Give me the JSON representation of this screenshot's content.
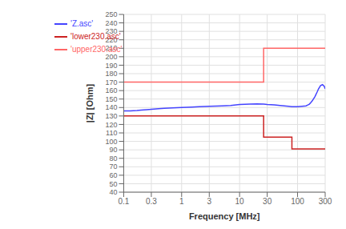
{
  "chart_data": {
    "type": "line",
    "xlabel": "Frequency [MHz]",
    "ylabel": "|Z| [Ohm]",
    "log": "x",
    "grid": true,
    "legend": "upper left",
    "xlim": [
      0.1,
      300
    ],
    "xticks": [
      0.1,
      0.3,
      1,
      3,
      10,
      30,
      100,
      300
    ],
    "ylim": [
      40,
      250
    ],
    "yticks": [
      40,
      50,
      60,
      70,
      80,
      90,
      100,
      110,
      120,
      130,
      140,
      150,
      160,
      170,
      180,
      190,
      200,
      210,
      220,
      230,
      240,
      250
    ],
    "series": [
      {
        "name": "'Z.asc'",
        "color": "#4444ff",
        "x": [
          0.1,
          0.13,
          0.17,
          0.2,
          0.25,
          0.3,
          0.4,
          0.5,
          0.7,
          1.0,
          1.5,
          2.0,
          3.0,
          5.0,
          7.0,
          10.0,
          15.0,
          20.0,
          26.0,
          30.0,
          40.0,
          50.0,
          70.0,
          80.0,
          100.0,
          120.0,
          140.0,
          150.0,
          160.0,
          170.0,
          180.0,
          200.0,
          220.0,
          230.0,
          250.0,
          270.0,
          290.0,
          300.0
        ],
        "values": [
          136,
          136,
          136.5,
          137,
          137.5,
          138,
          138.5,
          139,
          139.5,
          140,
          140.5,
          141,
          141.5,
          142,
          142.5,
          143.5,
          144,
          144.2,
          144,
          143.5,
          143,
          142.5,
          141.5,
          141,
          141,
          141.5,
          142,
          143,
          144,
          146,
          148,
          153,
          159,
          162,
          166,
          167,
          165,
          162
        ]
      },
      {
        "name": "'upper230.asc'",
        "color": "#ff6666",
        "x": [
          0.1,
          26,
          26,
          300
        ],
        "values": [
          170,
          170,
          210,
          210
        ]
      },
      {
        "name": "'lower230.asc'",
        "color": "#cc2222",
        "x": [
          0.1,
          26,
          26,
          80,
          80,
          300
        ],
        "values": [
          130,
          130,
          105,
          105,
          91,
          91
        ]
      }
    ]
  }
}
